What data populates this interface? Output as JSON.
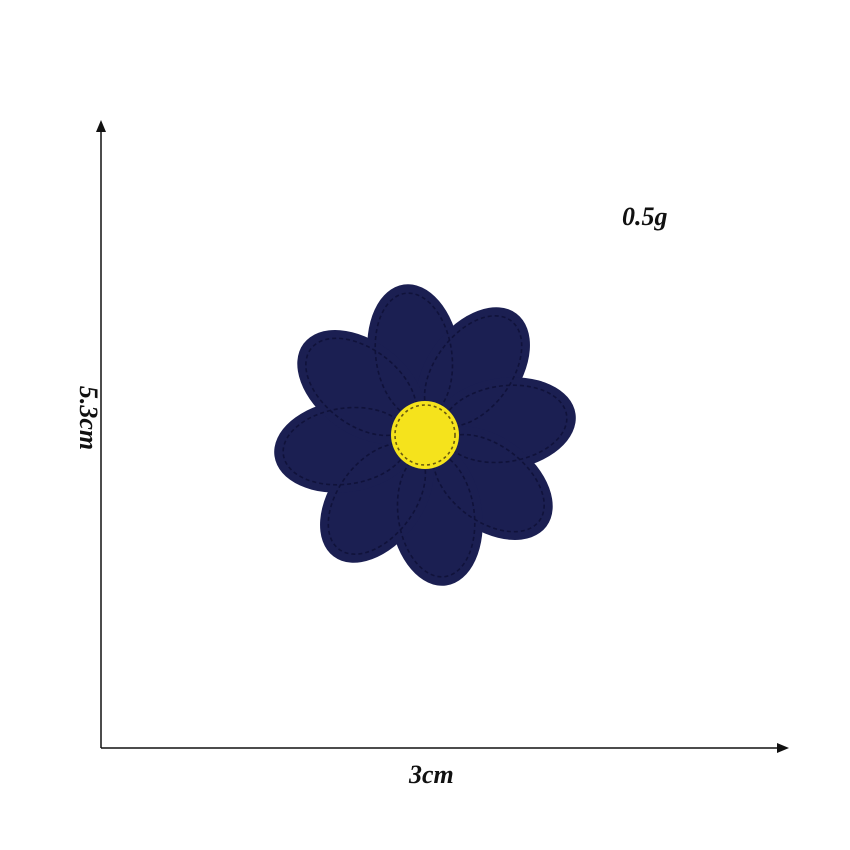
{
  "product": {
    "weight": "0.5g",
    "width": "3cm",
    "height": "5.3cm"
  },
  "colors": {
    "petal": "#1b1f52",
    "petal_stitch": "#10123a",
    "center": "#f5e31c",
    "center_stitch": "#6a5a10",
    "axis": "#111111"
  },
  "patch": {
    "petal_count": 8
  }
}
